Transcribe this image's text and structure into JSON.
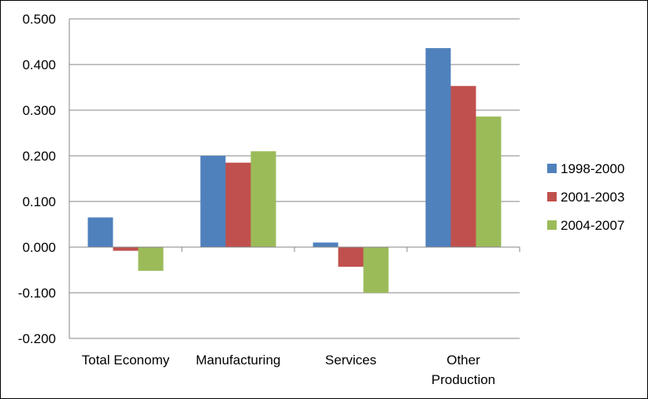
{
  "chart_data": {
    "type": "bar",
    "title": "",
    "xlabel": "",
    "ylabel": "",
    "categories": [
      [
        "Total Economy"
      ],
      [
        "Manufacturing"
      ],
      [
        "Services"
      ],
      [
        "Other",
        "Production"
      ]
    ],
    "series": [
      {
        "name": "1998-2000",
        "color": "#4f81bd",
        "values": [
          0.065,
          0.2,
          0.01,
          0.436
        ]
      },
      {
        "name": "2001-2003",
        "color": "#c0504d",
        "values": [
          -0.008,
          0.185,
          -0.043,
          0.353
        ]
      },
      {
        "name": "2004-2007",
        "color": "#9bbb59",
        "values": [
          -0.052,
          0.21,
          -0.1,
          0.286
        ]
      }
    ],
    "ylim": [
      -0.2,
      0.5
    ],
    "yticks": [
      0.5,
      0.4,
      0.3,
      0.2,
      0.1,
      0.0,
      -0.1,
      -0.2
    ],
    "ytick_labels": [
      "0.500",
      "0.400",
      "0.300",
      "0.200",
      "0.100",
      "0.000",
      "-0.100",
      "-0.200"
    ],
    "grid": true,
    "legend_position": "right",
    "gridline_color": "#868686",
    "axis_color": "#868686"
  }
}
